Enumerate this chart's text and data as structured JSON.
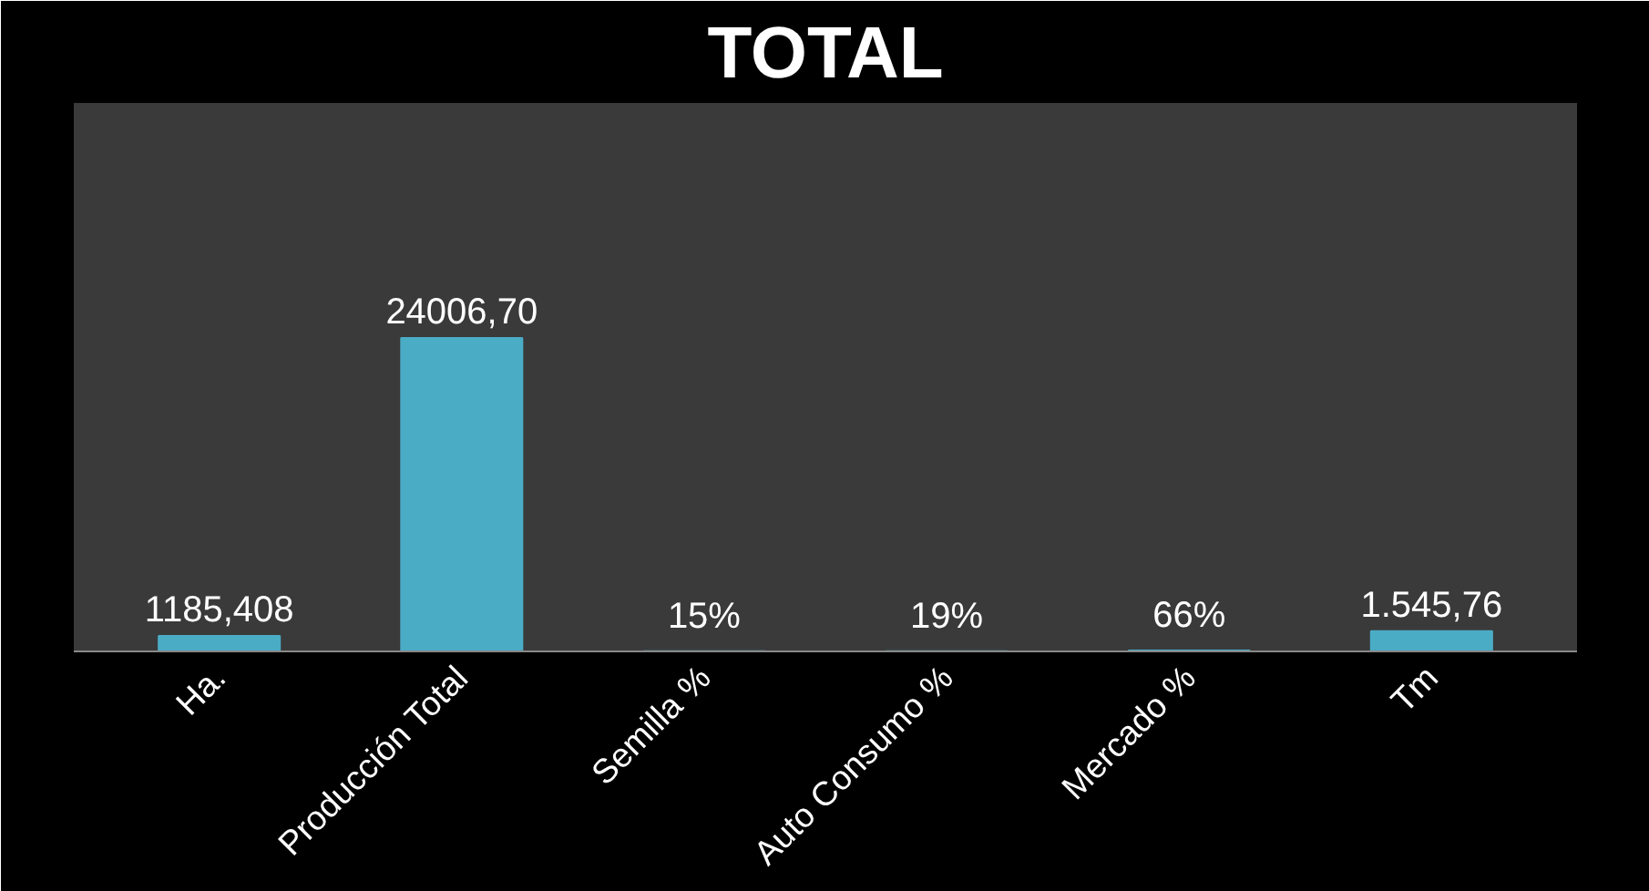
{
  "chart_data": {
    "type": "bar",
    "title": "TOTAL",
    "categories": [
      "Ha.",
      "Producción Total",
      "Semilla %",
      "Auto Consumo %",
      "Mercado %",
      "Tm"
    ],
    "values": [
      1185.408,
      24006.7,
      15,
      19,
      66,
      1545.76
    ],
    "value_labels": [
      "1185,408",
      "24006,70",
      "15%",
      "19%",
      "66%",
      "1.545,76"
    ],
    "color": "#4bacc6"
  }
}
